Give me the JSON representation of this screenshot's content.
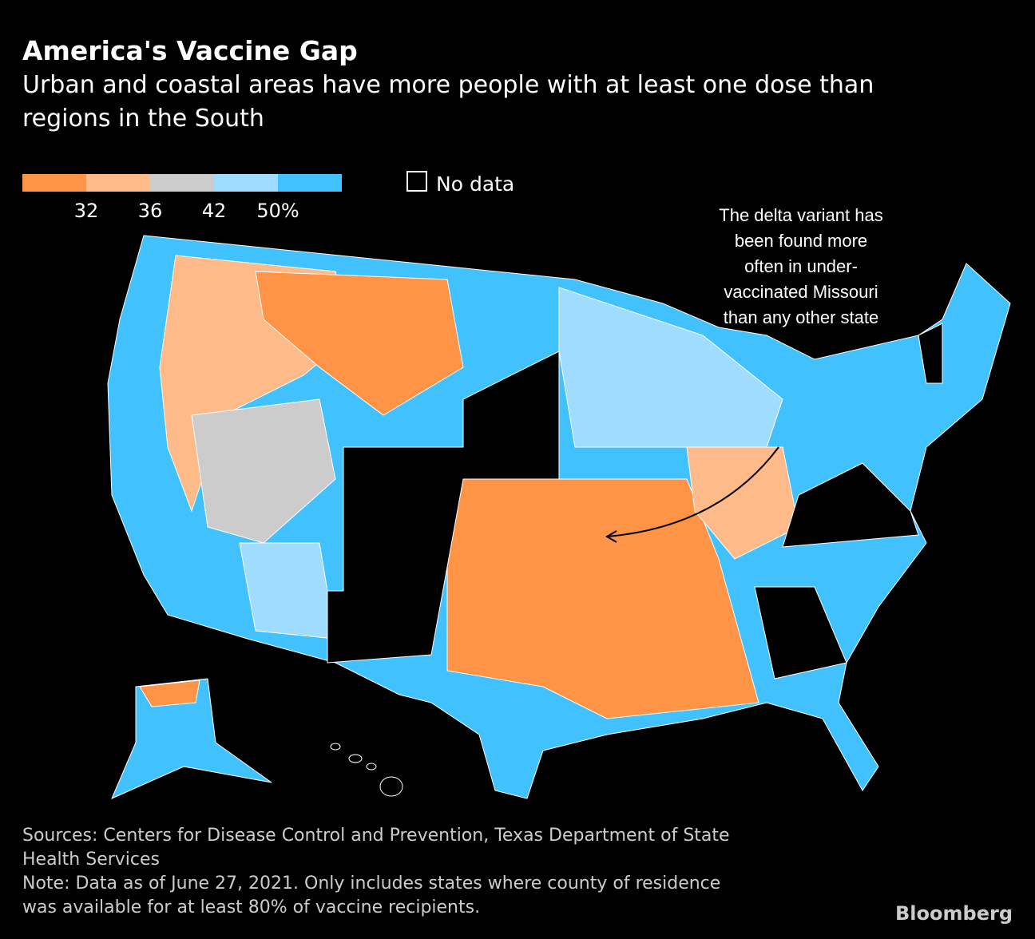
{
  "header": {
    "title": "America's Vaccine Gap",
    "subtitle_lines": [
      "Urban and coastal areas have more people with at least one dose than",
      "regions in the South"
    ]
  },
  "legend": {
    "colors": [
      "#ff9447",
      "#ffba8a",
      "#cccccc",
      "#9fdcff",
      "#41c2ff"
    ],
    "ticks": [
      "32",
      "36",
      "42",
      "50%"
    ],
    "no_data": "No data"
  },
  "annotation": {
    "lines": [
      "The delta variant has",
      "been found more",
      "often in under-",
      "vaccinated Missouri",
      "than any other state"
    ]
  },
  "footer": {
    "sources_lines": [
      "Sources: Centers for Disease Control and Prevention, Texas Department of State",
      "Health Services"
    ],
    "note_lines": [
      "Note: Data as of June 27, 2021. Only includes states where county of residence",
      "was available for at least 80% of vaccine recipients."
    ],
    "brand": "Bloomberg"
  }
}
